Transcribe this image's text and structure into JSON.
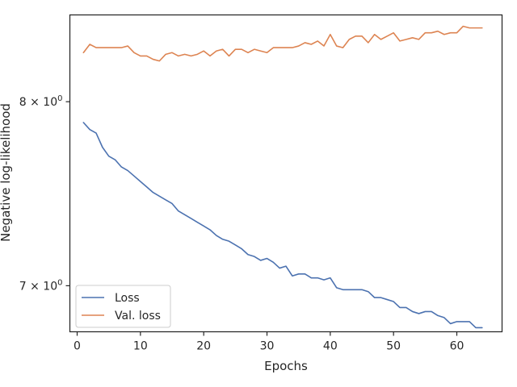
{
  "chart_data": {
    "type": "line",
    "xlabel": "Epochs",
    "ylabel": "Negative log-likelihood",
    "yscale": "log",
    "xlim": [
      -1.15,
      67.15
    ],
    "ylim": [
      6.77,
      8.52
    ],
    "xticks": [
      0,
      10,
      20,
      30,
      40,
      50,
      60
    ],
    "xtick_labels": [
      "0",
      "10",
      "20",
      "30",
      "40",
      "50",
      "60"
    ],
    "yticks": [
      7,
      8
    ],
    "ytick_labels": [
      "7 × 10",
      "8 × 10"
    ],
    "ytick_exponent": "0",
    "grid": false,
    "legend_position": "lower-left",
    "series": [
      {
        "name": "Loss",
        "color": "#4c72b0",
        "x": [
          1,
          2,
          3,
          4,
          5,
          6,
          7,
          8,
          9,
          10,
          11,
          12,
          13,
          14,
          15,
          16,
          17,
          18,
          19,
          20,
          21,
          22,
          23,
          24,
          25,
          26,
          27,
          28,
          29,
          30,
          31,
          32,
          33,
          34,
          35,
          36,
          37,
          38,
          39,
          40,
          41,
          42,
          43,
          44,
          45,
          46,
          47,
          48,
          49,
          50,
          51,
          52,
          53,
          54,
          55,
          56,
          57,
          58,
          59,
          60,
          61,
          62,
          63,
          64
        ],
        "values": [
          7.88,
          7.84,
          7.82,
          7.74,
          7.69,
          7.67,
          7.63,
          7.61,
          7.58,
          7.55,
          7.52,
          7.49,
          7.47,
          7.45,
          7.43,
          7.39,
          7.37,
          7.35,
          7.33,
          7.31,
          7.29,
          7.26,
          7.24,
          7.23,
          7.21,
          7.19,
          7.16,
          7.15,
          7.13,
          7.14,
          7.12,
          7.09,
          7.1,
          7.05,
          7.06,
          7.06,
          7.04,
          7.04,
          7.03,
          7.04,
          6.99,
          6.98,
          6.98,
          6.98,
          6.98,
          6.97,
          6.94,
          6.94,
          6.93,
          6.92,
          6.89,
          6.89,
          6.87,
          6.86,
          6.87,
          6.87,
          6.85,
          6.84,
          6.81,
          6.82,
          6.82,
          6.82,
          6.79,
          6.79
        ]
      },
      {
        "name": "Val. loss",
        "color": "#dd8452",
        "x": [
          1,
          2,
          3,
          4,
          5,
          6,
          7,
          8,
          9,
          10,
          11,
          12,
          13,
          14,
          15,
          16,
          17,
          18,
          19,
          20,
          21,
          22,
          23,
          24,
          25,
          26,
          27,
          28,
          29,
          30,
          31,
          32,
          33,
          34,
          35,
          36,
          37,
          38,
          39,
          40,
          41,
          42,
          43,
          44,
          45,
          46,
          47,
          48,
          49,
          50,
          51,
          52,
          53,
          54,
          55,
          56,
          57,
          58,
          59,
          60,
          61,
          62,
          63,
          64
        ],
        "values": [
          8.29,
          8.34,
          8.32,
          8.32,
          8.32,
          8.32,
          8.32,
          8.33,
          8.29,
          8.27,
          8.27,
          8.25,
          8.24,
          8.28,
          8.29,
          8.27,
          8.28,
          8.27,
          8.28,
          8.3,
          8.27,
          8.3,
          8.31,
          8.27,
          8.31,
          8.31,
          8.29,
          8.31,
          8.3,
          8.29,
          8.32,
          8.32,
          8.32,
          8.32,
          8.33,
          8.35,
          8.34,
          8.36,
          8.33,
          8.4,
          8.33,
          8.32,
          8.37,
          8.39,
          8.39,
          8.35,
          8.4,
          8.37,
          8.39,
          8.41,
          8.36,
          8.37,
          8.38,
          8.37,
          8.41,
          8.41,
          8.42,
          8.4,
          8.41,
          8.41,
          8.45,
          8.44,
          8.44,
          8.44
        ]
      }
    ]
  }
}
